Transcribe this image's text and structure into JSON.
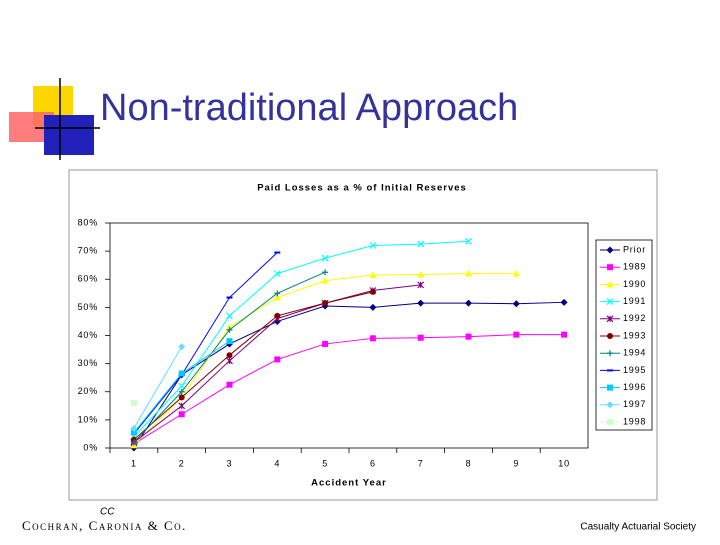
{
  "slide_title": "Non-traditional Approach",
  "chart_data": {
    "type": "line",
    "title": "Paid Losses as a % of Initial Reserves",
    "x_label": "Accident Year",
    "categories": [
      1,
      2,
      3,
      4,
      5,
      6,
      7,
      8,
      9,
      10
    ],
    "ylim": [
      0,
      80
    ],
    "yticks": [
      {
        "value": 0,
        "label": "0%"
      },
      {
        "value": 10,
        "label": "10%"
      },
      {
        "value": 20,
        "label": "20%"
      },
      {
        "value": 30,
        "label": "30%"
      },
      {
        "value": 40,
        "label": "40%"
      },
      {
        "value": 50,
        "label": "50%"
      },
      {
        "value": 60,
        "label": "60%"
      },
      {
        "value": 70,
        "label": "70%"
      },
      {
        "value": 80,
        "label": "80%"
      }
    ],
    "grid": false,
    "legend": "right",
    "series": [
      {
        "name": "Prior",
        "color": "#000080",
        "marker": "diamond",
        "values": [
          0,
          26,
          37,
          45,
          50.5,
          50,
          51.5,
          51.5,
          51.3,
          51.8
        ]
      },
      {
        "name": "1989",
        "color": "#ff00ff",
        "marker": "square",
        "values": [
          1.5,
          12,
          22.5,
          31.5,
          37,
          39,
          39.2,
          39.6,
          40.3,
          40.3
        ]
      },
      {
        "name": "1990",
        "color": "#ffff00",
        "marker": "triangle",
        "values": [
          1,
          18,
          43,
          53.5,
          59.5,
          61.5,
          61.7,
          62,
          62,
          null
        ]
      },
      {
        "name": "1991",
        "color": "#00ffff",
        "marker": "x",
        "values": [
          4,
          22,
          47,
          62,
          67.5,
          72,
          72.5,
          73.5,
          null,
          null
        ]
      },
      {
        "name": "1992",
        "color": "#800080",
        "marker": "star",
        "values": [
          2,
          15,
          31,
          46,
          51.5,
          56,
          58,
          null,
          null,
          null
        ]
      },
      {
        "name": "1993",
        "color": "#800000",
        "marker": "circle",
        "values": [
          3,
          18,
          33,
          47,
          51.5,
          55.5,
          null,
          null,
          null,
          null
        ]
      },
      {
        "name": "1994",
        "color": "#008080",
        "marker": "plus",
        "values": [
          2,
          20,
          42,
          55,
          62.5,
          null,
          null,
          null,
          null,
          null
        ]
      },
      {
        "name": "1995",
        "color": "#0000ff",
        "marker": "dash",
        "values": [
          5,
          26,
          53.5,
          69.5,
          null,
          null,
          null,
          null,
          null,
          null
        ]
      },
      {
        "name": "1996",
        "color": "#00ccff",
        "marker": "square",
        "values": [
          5.5,
          26.5,
          38,
          null,
          null,
          null,
          null,
          null,
          null,
          null
        ]
      },
      {
        "name": "1997",
        "color": "#66ddff",
        "marker": "diamond",
        "values": [
          7,
          36,
          null,
          null,
          null,
          null,
          null,
          null,
          null,
          null
        ]
      },
      {
        "name": "1998",
        "color": "#ccffcc",
        "marker": "square",
        "values": [
          16,
          null,
          null,
          null,
          null,
          null,
          null,
          null,
          null,
          null
        ]
      }
    ]
  },
  "footer": {
    "company": "Cochran, Caronia & Co.",
    "logo": "CC",
    "society": "Casualty Actuarial Society"
  }
}
